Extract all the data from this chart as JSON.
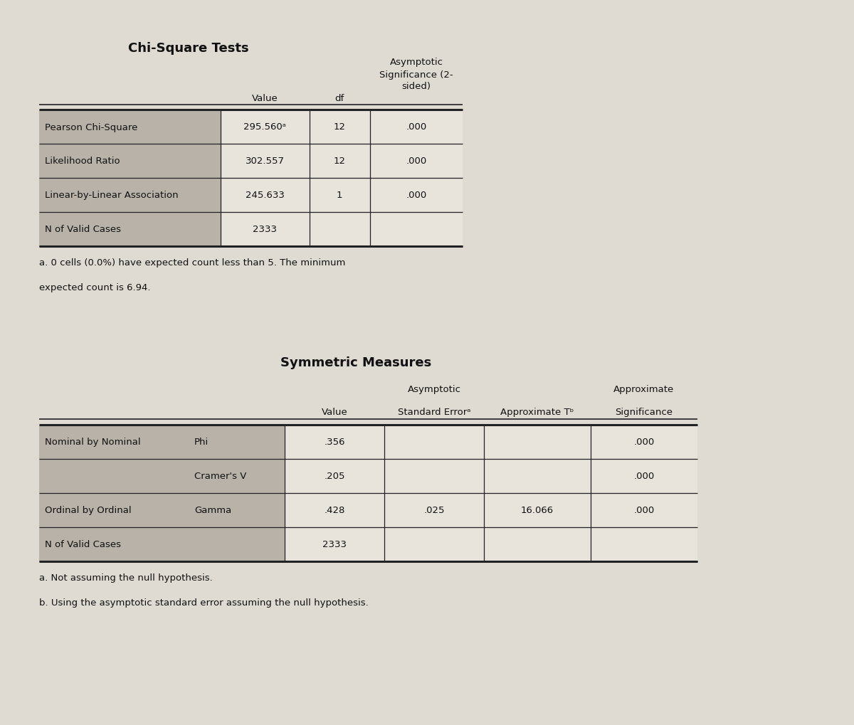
{
  "bg_color": "#e0dbd2",
  "cell_shaded": "#b8b2a8",
  "cell_white": "#e8e4dc",
  "table1": {
    "title": "Chi-Square Tests",
    "rows": [
      [
        "Pearson Chi-Square",
        "295.560ᵃ",
        "12",
        ".000"
      ],
      [
        "Likelihood Ratio",
        "302.557",
        "12",
        ".000"
      ],
      [
        "Linear-by-Linear Association",
        "245.633",
        "1",
        ".000"
      ],
      [
        "N of Valid Cases",
        "2333",
        "",
        ""
      ]
    ],
    "footnote1": "a. 0 cells (0.0%) have expected count less than 5. The minimum",
    "footnote2": "expected count is 6.94."
  },
  "table2": {
    "title": "Symmetric Measures",
    "rows": [
      [
        "Nominal by Nominal",
        "Phi",
        ".356",
        "",
        "",
        ".000"
      ],
      [
        "",
        "Cramer's V",
        ".205",
        "",
        "",
        ".000"
      ],
      [
        "Ordinal by Ordinal",
        "Gamma",
        ".428",
        ".025",
        "16.066",
        ".000"
      ],
      [
        "N of Valid Cases",
        "",
        "2333",
        "",
        "",
        ""
      ]
    ],
    "footnote1": "a. Not assuming the null hypothesis.",
    "footnote2": "b. Using the asymptotic standard error assuming the null hypothesis."
  }
}
